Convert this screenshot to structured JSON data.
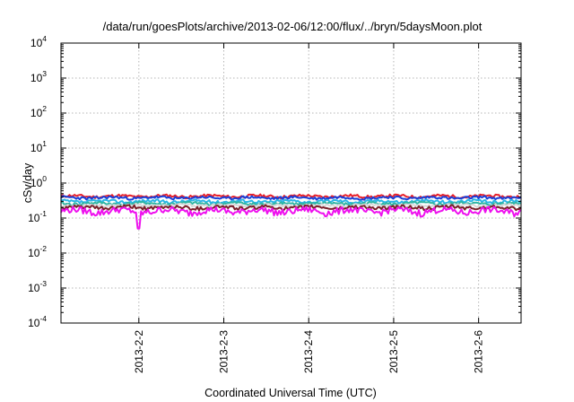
{
  "chart_data": {
    "type": "line",
    "title": "/data/run/goesPlots/archive/2013-02-06/12:00/flux/../bryn/5daysMoon.plot",
    "xlabel": "Coordinated Universal Time (UTC)",
    "ylabel": "cSv/day",
    "y_scale": "log",
    "ylim": [
      0.0001,
      10000
    ],
    "y_ticks": [
      {
        "base": "10",
        "exp": "-4",
        "value": 0.0001
      },
      {
        "base": "10",
        "exp": "-3",
        "value": 0.001
      },
      {
        "base": "10",
        "exp": "-2",
        "value": 0.01
      },
      {
        "base": "10",
        "exp": "-1",
        "value": 0.1
      },
      {
        "base": "10",
        "exp": "0",
        "value": 1
      },
      {
        "base": "10",
        "exp": "1",
        "value": 10
      },
      {
        "base": "10",
        "exp": "2",
        "value": 100
      },
      {
        "base": "10",
        "exp": "3",
        "value": 1000
      },
      {
        "base": "10",
        "exp": "4",
        "value": 10000
      }
    ],
    "xlim": [
      "2013-02-01 02:00",
      "2013-02-06 12:00"
    ],
    "x_ticks": [
      {
        "label": "2013-2-2",
        "value": "2013-02-02 00:00"
      },
      {
        "label": "2013-2-3",
        "value": "2013-02-03 00:00"
      },
      {
        "label": "2013-2-4",
        "value": "2013-02-04 00:00"
      },
      {
        "label": "2013-2-5",
        "value": "2013-02-05 00:00"
      },
      {
        "label": "2013-2-6",
        "value": "2013-02-06 00:00"
      }
    ],
    "grid": true,
    "legend": "none",
    "series": [
      {
        "color": "#e8202a",
        "level": 0.42,
        "spread": 0.04,
        "seed": 11
      },
      {
        "color": "#1a3fd8",
        "level": 0.38,
        "spread": 0.035,
        "seed": 23
      },
      {
        "color": "#29b6e6",
        "level": 0.3,
        "spread": 0.03,
        "seed": 37
      },
      {
        "color": "#2fb5a3",
        "level": 0.26,
        "spread": 0.025,
        "seed": 41
      },
      {
        "color": "#d8d8d8",
        "level": 0.23,
        "spread": 0.02,
        "seed": 53
      },
      {
        "color": "#7a1f2a",
        "level": 0.2,
        "spread": 0.025,
        "seed": 61
      },
      {
        "color": "#ee10ee",
        "level": 0.16,
        "spread": 0.035,
        "seed": 79,
        "dip": {
          "x": "2013-02-02 00:00",
          "y": 0.05
        }
      }
    ]
  }
}
